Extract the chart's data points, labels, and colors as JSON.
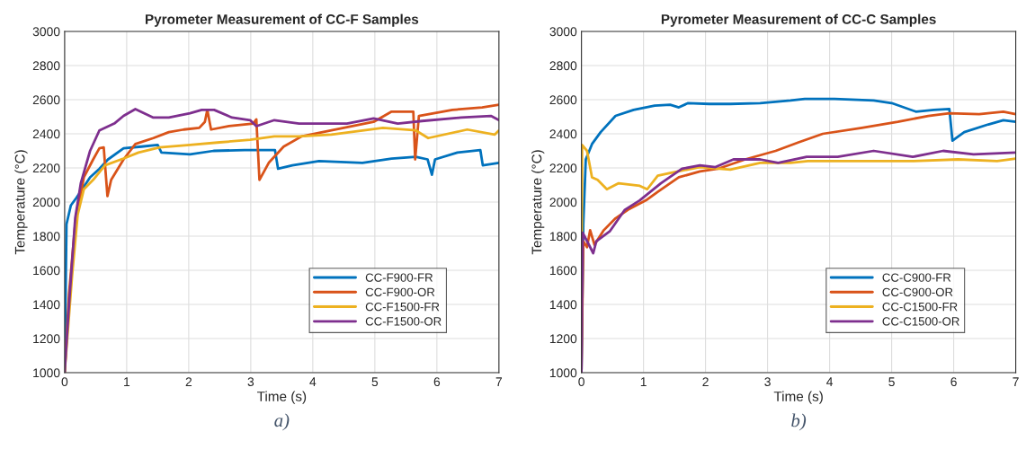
{
  "chart_data": [
    {
      "type": "line",
      "title": "Pyrometer Measurement of CC-F Samples",
      "xlabel": "Time (s)",
      "ylabel": "Temperature (°C)",
      "xlim": [
        0,
        7
      ],
      "ylim": [
        1000,
        3000
      ],
      "xticks": [
        0,
        1,
        2,
        3,
        4,
        5,
        6,
        7
      ],
      "yticks": [
        1000,
        1200,
        1400,
        1600,
        1800,
        2000,
        2200,
        2400,
        2600,
        2800,
        3000
      ],
      "grid": true,
      "legend": "bottom right",
      "annotations": [
        "a)"
      ],
      "series": [
        {
          "name": "CC-F900-FR",
          "color": "#0072bd",
          "x": [
            0,
            0.03,
            0.1,
            0.19,
            0.41,
            0.56,
            0.7,
            0.95,
            1.24,
            1.5,
            1.56,
            2.02,
            2.4,
            2.9,
            3.39,
            3.44,
            3.67,
            4.1,
            4.8,
            5.27,
            5.66,
            5.85,
            5.92,
            5.97,
            6.33,
            6.7,
            6.74,
            7
          ],
          "values": [
            1000,
            1870,
            1980,
            2025,
            2145,
            2195,
            2250,
            2315,
            2325,
            2335,
            2290,
            2280,
            2300,
            2305,
            2305,
            2195,
            2215,
            2240,
            2230,
            2255,
            2265,
            2250,
            2160,
            2250,
            2290,
            2305,
            2215,
            2230
          ]
        },
        {
          "name": "CC-F900-OR",
          "color": "#d95319",
          "x": [
            0,
            0.07,
            0.17,
            0.31,
            0.46,
            0.56,
            0.63,
            0.69,
            0.75,
            0.95,
            1.14,
            1.43,
            1.68,
            1.92,
            2.17,
            2.26,
            2.3,
            2.36,
            2.65,
            3.04,
            3.09,
            3.14,
            3.29,
            3.53,
            3.82,
            4.3,
            4.98,
            5.27,
            5.62,
            5.65,
            5.71,
            6.25,
            6.73,
            7
          ],
          "values": [
            1000,
            1460,
            1870,
            2145,
            2250,
            2315,
            2320,
            2035,
            2130,
            2250,
            2340,
            2375,
            2410,
            2425,
            2435,
            2470,
            2540,
            2425,
            2445,
            2460,
            2485,
            2130,
            2230,
            2325,
            2385,
            2420,
            2470,
            2530,
            2530,
            2250,
            2505,
            2540,
            2555,
            2570
          ]
        },
        {
          "name": "CC-F1500-FR",
          "color": "#edb120",
          "x": [
            0,
            0.12,
            0.21,
            0.31,
            0.46,
            0.65,
            0.95,
            1.19,
            1.53,
            2.02,
            2.5,
            2.99,
            3.38,
            3.78,
            4.3,
            5.13,
            5.66,
            5.86,
            6.49,
            6.93,
            7
          ],
          "values": [
            1000,
            1565,
            1925,
            2075,
            2130,
            2215,
            2255,
            2290,
            2320,
            2335,
            2350,
            2365,
            2385,
            2385,
            2395,
            2435,
            2420,
            2375,
            2425,
            2395,
            2420
          ]
        },
        {
          "name": "CC-F1500-OR",
          "color": "#7e2f8e",
          "x": [
            0,
            0.07,
            0.17,
            0.26,
            0.41,
            0.56,
            0.8,
            0.95,
            1.14,
            1.43,
            1.68,
            2.02,
            2.21,
            2.41,
            2.7,
            2.99,
            3.09,
            3.38,
            3.78,
            4.06,
            4.55,
            4.98,
            5.37,
            5.76,
            6.39,
            6.87,
            7
          ],
          "values": [
            1000,
            1395,
            1905,
            2110,
            2300,
            2420,
            2460,
            2505,
            2545,
            2495,
            2495,
            2520,
            2540,
            2540,
            2495,
            2480,
            2445,
            2480,
            2460,
            2460,
            2460,
            2490,
            2460,
            2475,
            2495,
            2505,
            2480
          ]
        }
      ]
    },
    {
      "type": "line",
      "title": "Pyrometer Measurement of CC-C Samples",
      "xlabel": "Time (s)",
      "ylabel": "Temperature (°C)",
      "xlim": [
        0,
        7
      ],
      "ylim": [
        1000,
        3000
      ],
      "xticks": [
        0,
        1,
        2,
        3,
        4,
        5,
        6,
        7
      ],
      "yticks": [
        1000,
        1200,
        1400,
        1600,
        1800,
        2000,
        2200,
        2400,
        2600,
        2800,
        3000
      ],
      "grid": true,
      "legend": "bottom right",
      "annotations": [
        "b)"
      ],
      "series": [
        {
          "name": "CC-C900-FR",
          "color": "#0072bd",
          "x": [
            0,
            0.03,
            0.07,
            0.17,
            0.31,
            0.55,
            0.84,
            1.18,
            1.43,
            1.57,
            1.72,
            2.06,
            2.4,
            2.88,
            3.37,
            3.6,
            4.08,
            4.71,
            5.0,
            5.39,
            5.68,
            5.93,
            5.98,
            6.17,
            6.56,
            6.8,
            7
          ],
          "values": [
            1000,
            1870,
            2250,
            2340,
            2410,
            2505,
            2540,
            2565,
            2570,
            2555,
            2580,
            2575,
            2575,
            2580,
            2595,
            2605,
            2605,
            2595,
            2580,
            2530,
            2540,
            2545,
            2360,
            2410,
            2455,
            2480,
            2470
          ]
        },
        {
          "name": "CC-C900-OR",
          "color": "#d95319",
          "x": [
            0,
            0.03,
            0.09,
            0.14,
            0.21,
            0.36,
            0.55,
            0.75,
            1.04,
            1.23,
            1.57,
            1.91,
            2.2,
            2.64,
            3.13,
            3.5,
            3.89,
            4.52,
            5.1,
            5.59,
            5.93,
            6.41,
            6.8,
            7
          ],
          "values": [
            1000,
            1770,
            1735,
            1835,
            1750,
            1835,
            1905,
            1955,
            2010,
            2060,
            2145,
            2180,
            2195,
            2250,
            2300,
            2350,
            2400,
            2435,
            2470,
            2505,
            2520,
            2515,
            2530,
            2515
          ]
        },
        {
          "name": "CC-C1500-FR",
          "color": "#edb120",
          "x": [
            0,
            0.01,
            0.09,
            0.17,
            0.26,
            0.41,
            0.6,
            0.94,
            1.06,
            1.23,
            1.43,
            1.91,
            2.4,
            2.88,
            3.37,
            3.65,
            4.37,
            5.34,
            6.07,
            6.7,
            7
          ],
          "values": [
            1000,
            2335,
            2300,
            2145,
            2130,
            2075,
            2110,
            2095,
            2075,
            2155,
            2170,
            2205,
            2190,
            2230,
            2230,
            2240,
            2240,
            2240,
            2250,
            2240,
            2255
          ]
        },
        {
          "name": "CC-C1500-OR",
          "color": "#7e2f8e",
          "x": [
            0,
            0.02,
            0.12,
            0.19,
            0.24,
            0.46,
            0.7,
            0.94,
            1.28,
            1.62,
            1.91,
            2.16,
            2.45,
            2.88,
            3.17,
            3.63,
            4.13,
            4.71,
            5.34,
            5.83,
            6.32,
            7
          ],
          "values": [
            1000,
            1820,
            1750,
            1700,
            1770,
            1830,
            1955,
            2010,
            2110,
            2195,
            2215,
            2205,
            2250,
            2250,
            2230,
            2265,
            2265,
            2300,
            2265,
            2300,
            2280,
            2290
          ]
        }
      ]
    }
  ]
}
